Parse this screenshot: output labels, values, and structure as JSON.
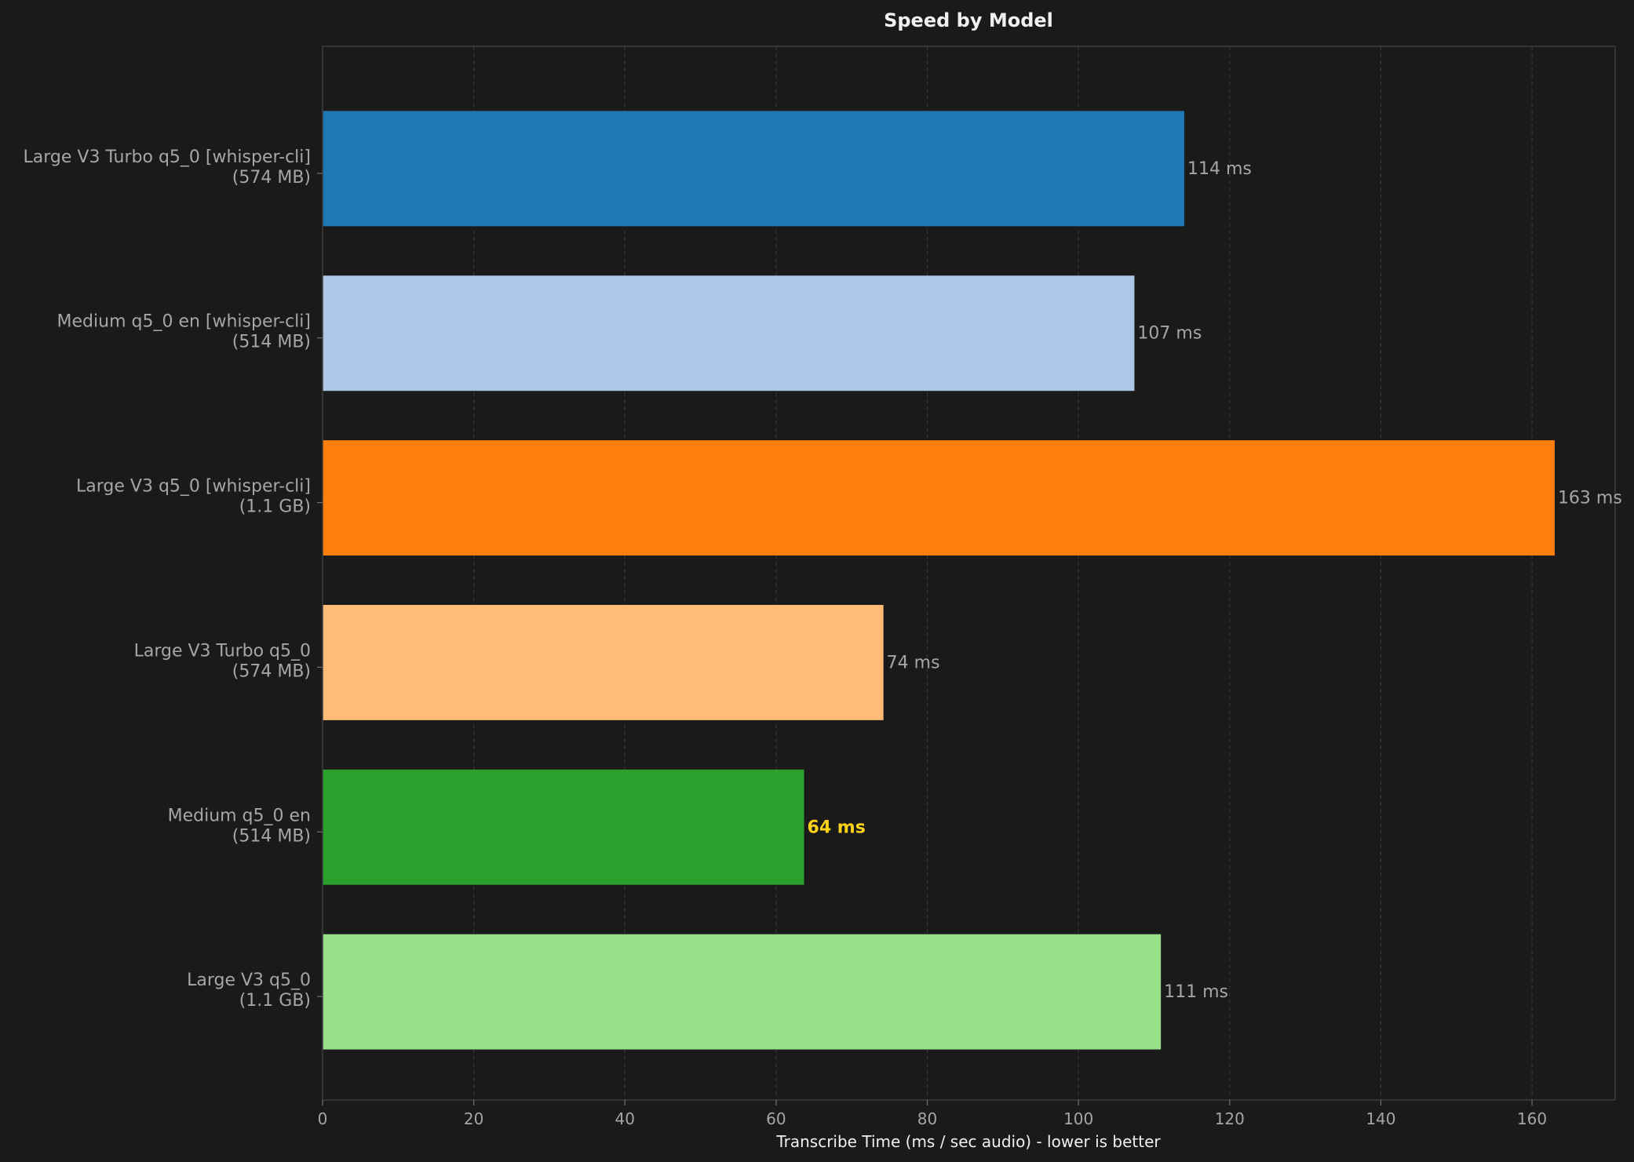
{
  "chart_data": {
    "type": "bar",
    "orientation": "horizontal",
    "title": "Speed by Model",
    "xlabel": "Transcribe Time (ms / sec audio) - lower is better",
    "ylabel": "",
    "xlim": [
      0,
      171
    ],
    "xticks": [
      0,
      20,
      40,
      60,
      80,
      100,
      120,
      140,
      160
    ],
    "grid": "vertical dashed",
    "categories": [
      [
        "Large V3 Turbo q5_0 [whisper-cli]",
        "(574 MB)"
      ],
      [
        "Medium q5_0 en [whisper-cli]",
        "(514 MB)"
      ],
      [
        "Large V3 q5_0 [whisper-cli]",
        "(1.1 GB)"
      ],
      [
        "Large V3 Turbo q5_0",
        "(574 MB)"
      ],
      [
        "Medium q5_0 en",
        "(514 MB)"
      ],
      [
        "Large V3 q5_0",
        "(1.1 GB)"
      ]
    ],
    "values": [
      114,
      107.4,
      163,
      74.2,
      63.7,
      110.9
    ],
    "value_labels": [
      "114 ms",
      "107 ms",
      "163 ms",
      "74 ms",
      "64 ms",
      "111 ms"
    ],
    "highlight_index": 4,
    "colors": [
      "#1f77b4",
      "#aec7e8",
      "#ff7f0e",
      "#ffbb78",
      "#2ca02c",
      "#98df8a"
    ],
    "highlight_color": "#ffd21a"
  }
}
